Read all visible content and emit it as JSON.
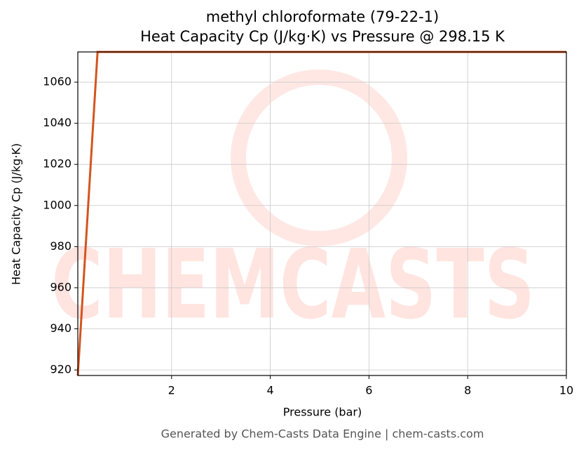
{
  "chart_data": {
    "type": "line",
    "title": "methyl chloroformate (79-22-1)",
    "subtitle": "Heat Capacity Cp (J/kg·K) vs Pressure @ 298.15 K",
    "x_label": "Pressure (bar)",
    "y_label": "Heat Capacity Cp (J/kg·K)",
    "footer": "Generated by Chem-Casts Data Engine | chem-casts.com",
    "watermark": "CHEMCASTS",
    "x": [
      0.1,
      0.5,
      10
    ],
    "series": [
      {
        "name": "Cp",
        "color": "#d4541f",
        "values": [
          917.3,
          1074.7,
          1074.7
        ]
      }
    ],
    "xlim": [
      0.1,
      10
    ],
    "xticks": [
      2,
      4,
      6,
      8,
      10
    ],
    "ylim": [
      917.3,
      1074.7
    ],
    "yticks": [
      920,
      940,
      960,
      980,
      1000,
      1020,
      1040,
      1060
    ],
    "grid": true
  }
}
